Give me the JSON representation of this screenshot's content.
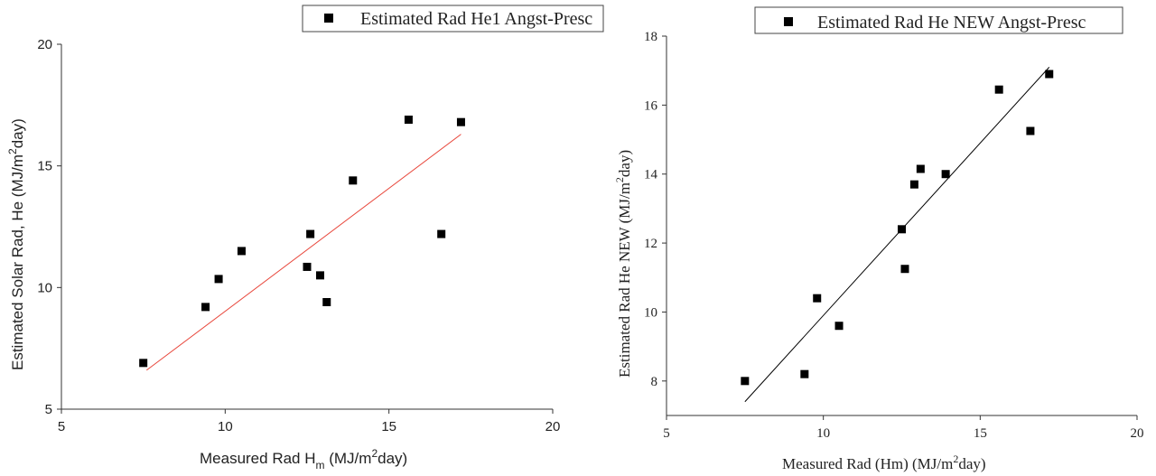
{
  "chart_data": [
    {
      "type": "scatter",
      "fit_line": {
        "x": [
          7.6,
          17.2
        ],
        "y": [
          6.6,
          16.3
        ]
      },
      "xlim": [
        5,
        20
      ],
      "ylim": [
        5,
        20
      ],
      "xticks": [
        5,
        10,
        15,
        20
      ],
      "yticks": [
        5,
        10,
        15,
        20
      ],
      "xlabel": {
        "main": "Measured Rad H",
        "sub": "m",
        "mid": " (MJ/m",
        "sup": "2",
        "end": "day)"
      },
      "ylabel": {
        "main": "Estimated Solar Rad, He (MJ/m",
        "sup": "2",
        "end": "day)"
      },
      "series": [
        {
          "name": "Estimated Rad He1 Angst-Presc",
          "x": [
            7.5,
            9.4,
            9.8,
            10.5,
            12.5,
            12.6,
            12.9,
            13.1,
            13.9,
            15.6,
            16.6,
            17.2
          ],
          "y": [
            6.9,
            9.2,
            10.35,
            11.5,
            10.85,
            12.2,
            10.5,
            9.4,
            14.4,
            16.9,
            12.2,
            16.8
          ]
        }
      ],
      "colors": {
        "fit": "#e8473c",
        "marker": "#000000"
      }
    },
    {
      "type": "scatter",
      "fit_line": {
        "x": [
          7.5,
          17.2
        ],
        "y": [
          7.4,
          17.1
        ]
      },
      "xlim": [
        5,
        20
      ],
      "ylim": [
        7,
        18
      ],
      "xticks": [
        5,
        10,
        15,
        20
      ],
      "yticks": [
        8,
        10,
        12,
        14,
        16,
        18
      ],
      "xlabel": {
        "main": "Measured Rad (Hm) (MJ/m",
        "sup": "2",
        "end": "day)"
      },
      "ylabel": {
        "main": "Estimated Rad He NEW (MJ/m",
        "sup": "2",
        "end": "day)"
      },
      "series": [
        {
          "name": "Estimated Rad He NEW Angst-Presc",
          "x": [
            7.5,
            9.4,
            9.8,
            10.5,
            12.5,
            12.6,
            12.9,
            13.1,
            13.9,
            15.6,
            16.6,
            17.2
          ],
          "y": [
            8.0,
            8.2,
            10.4,
            9.6,
            12.4,
            11.25,
            13.7,
            14.15,
            14.0,
            16.45,
            15.25,
            16.9
          ]
        }
      ],
      "colors": {
        "fit": "#000000",
        "marker": "#000000"
      }
    }
  ]
}
